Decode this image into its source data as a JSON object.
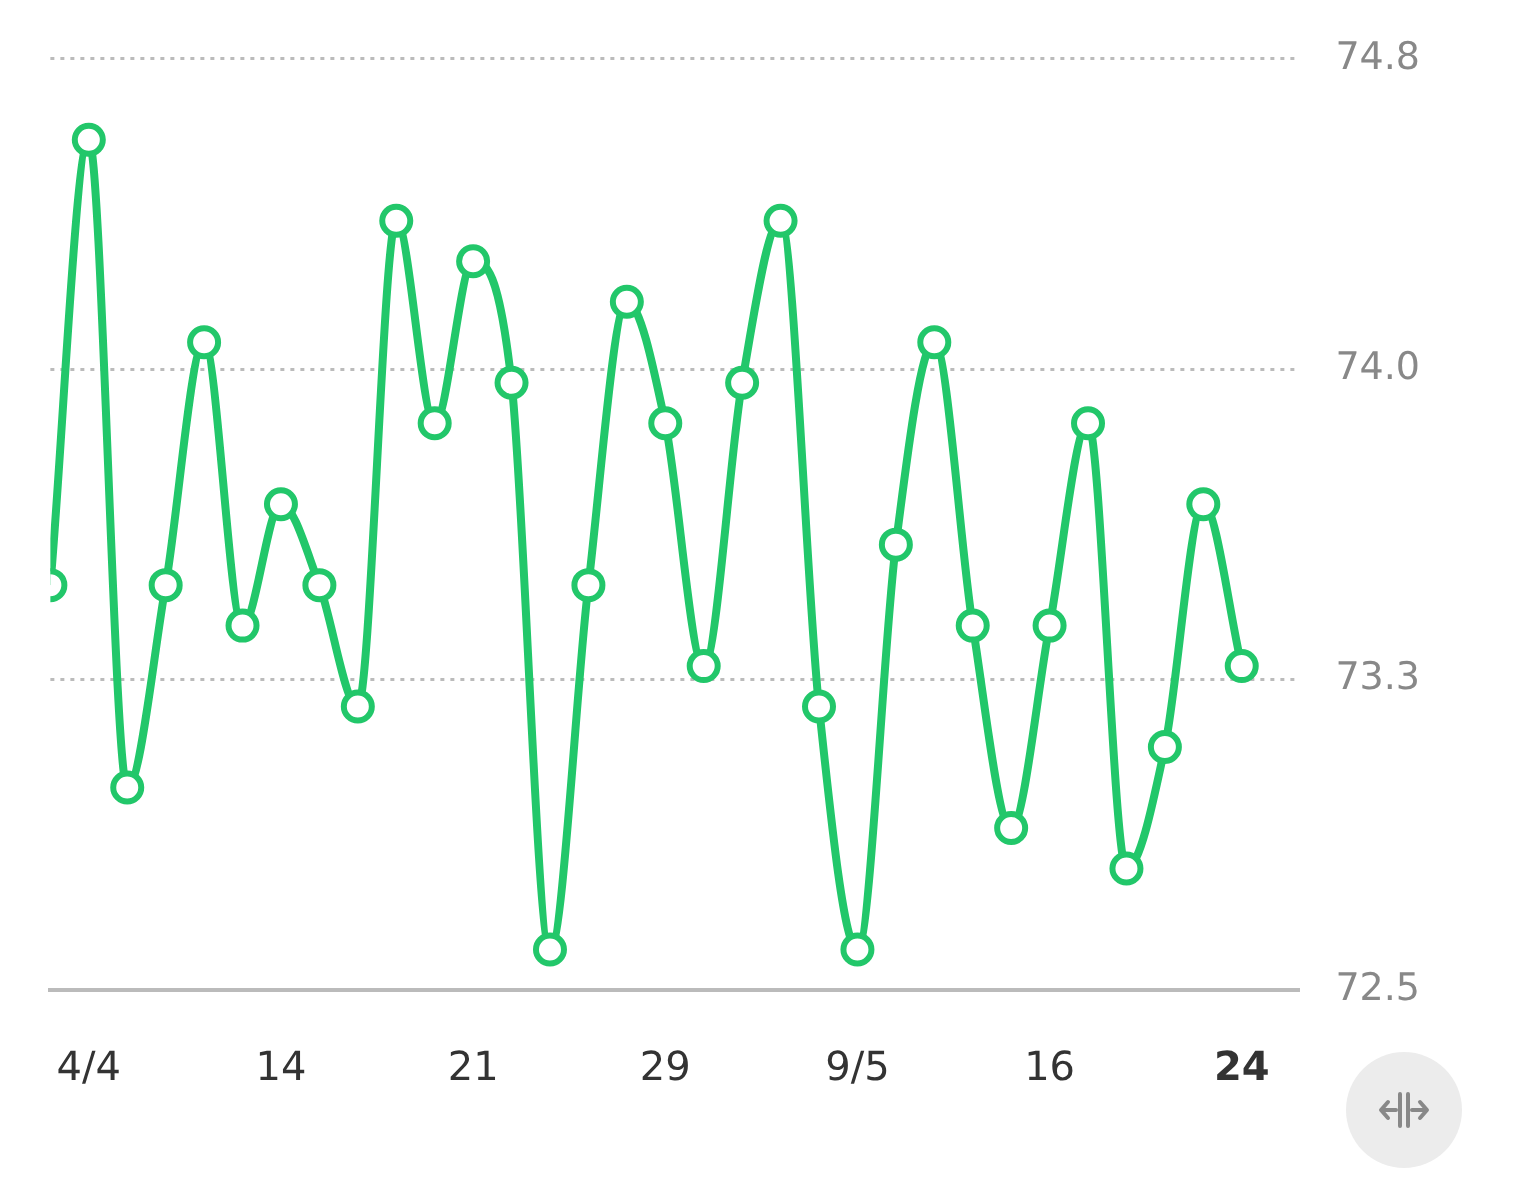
{
  "chart_data": {
    "type": "line",
    "categories": [
      null,
      "4/4",
      null,
      null,
      null,
      null,
      "14",
      null,
      null,
      null,
      null,
      "21",
      null,
      null,
      null,
      null,
      "29",
      null,
      null,
      null,
      null,
      "9/5",
      null,
      null,
      null,
      null,
      "16",
      null,
      null,
      null,
      null,
      "24"
    ],
    "series": [
      {
        "color": "#22c76a",
        "values": [
          73.5,
          74.6,
          73.0,
          73.5,
          74.1,
          73.4,
          73.7,
          73.5,
          73.2,
          74.4,
          73.9,
          74.3,
          74.0,
          72.6,
          73.5,
          74.2,
          73.9,
          73.3,
          74.0,
          74.4,
          73.2,
          72.6,
          73.6,
          74.1,
          73.4,
          72.9,
          73.4,
          73.9,
          72.8,
          73.1,
          73.7,
          73.3
        ]
      }
    ],
    "ylim": [
      72.5,
      74.8
    ],
    "yticks": [
      72.5,
      {
        "value": 73.2667,
        "label": "73.3"
      },
      {
        "value": 74.0333,
        "label": "74.0"
      },
      74.8
    ],
    "grid": "y",
    "legend": false,
    "marker": "circle",
    "line_style": "solid"
  }
}
